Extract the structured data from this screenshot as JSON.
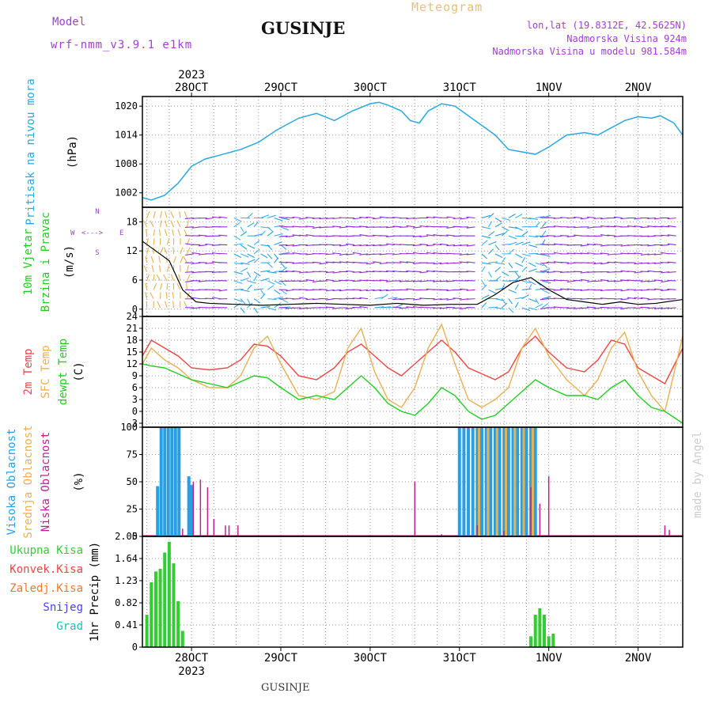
{
  "header": {
    "model_label": "Model",
    "model_name": "wrf-nmm_v3.9.1  e1km",
    "title": "GUSINJE",
    "meteogram": "Meteogram",
    "lonlat": "lon,lat (19.8312E, 42.5625N)",
    "altitude": "Nadmorska Visina 924m",
    "model_altitude": "Nadmorska Visina u modelu 981.584m",
    "watermark": "made by Angel",
    "footer": "GUSINJE"
  },
  "colors": {
    "pressure": "#29a8e0",
    "temp2m": "#ee4444",
    "sfc": "#e8b050",
    "dewpt": "#22cc22",
    "cloud_high": "#2a9fdf",
    "cloud_mid": "#e8b050",
    "cloud_low": "#c0208f",
    "precip": "#33cc33",
    "title_purple": "#a040d0"
  },
  "time_axis": {
    "year": "2023",
    "ticks": [
      {
        "label": "28OCT",
        "day": 1
      },
      {
        "label": "29OCT",
        "day": 2
      },
      {
        "label": "30OCT",
        "day": 3
      },
      {
        "label": "31OCT",
        "day": 4
      },
      {
        "label": "1NOV",
        "day": 5
      },
      {
        "label": "2NOV",
        "day": 6
      }
    ],
    "range": [
      0.45,
      6.5
    ]
  },
  "chart_data": [
    {
      "type": "line",
      "ylabel_lines": [
        "Pritisak na nivou mora",
        "(hPa)"
      ],
      "ylim": [
        999,
        1022
      ],
      "yticks": [
        1002,
        1008,
        1014,
        1020
      ],
      "series": [
        {
          "x": [
            0.45,
            0.55,
            0.7,
            0.85,
            1.0,
            1.15,
            1.35,
            1.55,
            1.75,
            1.95,
            2.2,
            2.4,
            2.6,
            2.8,
            3.0,
            3.1,
            3.2,
            3.35,
            3.45,
            3.55,
            3.65,
            3.8,
            3.95,
            4.1,
            4.25,
            4.4,
            4.55,
            4.7,
            4.85,
            5.0,
            5.2,
            5.4,
            5.55,
            5.7,
            5.85,
            6.0,
            6.15,
            6.25,
            6.4,
            6.5
          ],
          "y": [
            1001,
            1000.5,
            1001.5,
            1004,
            1007.5,
            1009,
            1010,
            1011,
            1012.5,
            1015,
            1017.5,
            1018.5,
            1017,
            1019,
            1020.5,
            1020.8,
            1020.2,
            1019,
            1017,
            1016.5,
            1019,
            1020.5,
            1020,
            1018,
            1016,
            1014,
            1011,
            1010.5,
            1010,
            1011.5,
            1014,
            1014.5,
            1014,
            1015.5,
            1017,
            1017.8,
            1017.5,
            1018,
            1016.5,
            1014
          ]
        }
      ]
    },
    {
      "type": "line",
      "ylabel_lines": [
        "10m Vjetar",
        "Brzina i Pravac",
        "(m/s)"
      ],
      "ylim": [
        -1.5,
        21
      ],
      "yticks": [
        0,
        6,
        12,
        18
      ],
      "compass": [
        "N",
        "W",
        "<",
        "-",
        "-",
        "-",
        ">",
        "E",
        "S"
      ],
      "series": [
        {
          "name": "speed",
          "x": [
            0.45,
            0.6,
            0.75,
            0.9,
            1.05,
            1.2,
            1.5,
            1.8,
            2.1,
            2.4,
            2.7,
            3.0,
            3.3,
            3.6,
            3.9,
            4.2,
            4.4,
            4.6,
            4.8,
            5.0,
            5.2,
            5.4,
            5.6,
            5.8,
            6.0,
            6.2,
            6.5
          ],
          "y": [
            14,
            12,
            10,
            4,
            1.5,
            1.2,
            1.0,
            0.8,
            1.0,
            1.2,
            1.0,
            0.8,
            1.2,
            0.8,
            1.0,
            1.0,
            3.0,
            5.5,
            6.5,
            4.0,
            2.0,
            1.5,
            1.0,
            1.5,
            1.0,
            1.2,
            2.0
          ]
        }
      ]
    },
    {
      "type": "line",
      "ylabel_lines": [
        "2m Temp",
        "SFC Temp",
        "dewpt Temp",
        "(C)"
      ],
      "ylim": [
        -4,
        24
      ],
      "yticks": [
        -3,
        0,
        3,
        6,
        9,
        12,
        15,
        18,
        21,
        24
      ],
      "series": [
        {
          "name": "2m Temp",
          "x": [
            0.45,
            0.55,
            0.7,
            0.85,
            1.0,
            1.2,
            1.4,
            1.55,
            1.7,
            1.85,
            2.0,
            2.2,
            2.4,
            2.6,
            2.75,
            2.9,
            3.05,
            3.2,
            3.35,
            3.5,
            3.65,
            3.8,
            3.95,
            4.1,
            4.25,
            4.4,
            4.55,
            4.7,
            4.85,
            5.0,
            5.2,
            5.4,
            5.55,
            5.7,
            5.85,
            6.0,
            6.15,
            6.3,
            6.5
          ],
          "y": [
            14,
            18,
            16,
            14,
            11,
            10.5,
            11,
            13,
            17,
            16.5,
            14,
            9,
            8,
            11,
            15,
            17,
            14,
            11,
            9,
            12,
            15,
            18,
            15,
            11,
            9.5,
            8,
            10,
            16,
            19,
            15,
            11,
            10,
            13,
            18,
            17,
            11,
            9,
            7,
            16
          ]
        },
        {
          "name": "SFC Temp",
          "x": [
            0.45,
            0.55,
            0.7,
            0.85,
            1.0,
            1.2,
            1.4,
            1.55,
            1.7,
            1.85,
            2.0,
            2.2,
            2.4,
            2.6,
            2.75,
            2.9,
            3.05,
            3.2,
            3.35,
            3.5,
            3.65,
            3.8,
            3.95,
            4.1,
            4.25,
            4.4,
            4.55,
            4.7,
            4.85,
            5.0,
            5.2,
            5.4,
            5.55,
            5.7,
            5.85,
            6.0,
            6.15,
            6.3,
            6.5
          ],
          "y": [
            12,
            16,
            13,
            11,
            8,
            6,
            6,
            9,
            16,
            19,
            12,
            4,
            3,
            5,
            16,
            21,
            10,
            3,
            1,
            6,
            16,
            22,
            12,
            3,
            1,
            3,
            6,
            16,
            21,
            14,
            8,
            4,
            8,
            16,
            20,
            10,
            4,
            0,
            19
          ]
        },
        {
          "name": "dewpt Temp",
          "x": [
            0.45,
            0.55,
            0.7,
            0.85,
            1.0,
            1.2,
            1.4,
            1.55,
            1.7,
            1.85,
            2.0,
            2.2,
            2.4,
            2.6,
            2.75,
            2.9,
            3.05,
            3.2,
            3.35,
            3.5,
            3.65,
            3.8,
            3.95,
            4.1,
            4.25,
            4.4,
            4.55,
            4.7,
            4.85,
            5.0,
            5.2,
            5.4,
            5.55,
            5.7,
            5.85,
            6.0,
            6.15,
            6.3,
            6.5
          ],
          "y": [
            12,
            11.5,
            11,
            9.5,
            8,
            7,
            6,
            7.5,
            9,
            8.5,
            6,
            3,
            4,
            3,
            6,
            9,
            6,
            2,
            0,
            -1,
            2,
            6,
            4,
            0,
            -2,
            -1,
            2,
            5,
            8,
            6,
            4,
            4,
            3,
            6,
            8,
            4,
            1,
            0,
            -3
          ]
        }
      ]
    },
    {
      "type": "bar",
      "ylabel_lines": [
        "Visoka Oblacnost",
        "Srednja Oblacnost",
        "Niska Oblacnost",
        "(%)"
      ],
      "ylim": [
        0,
        100
      ],
      "yticks": [
        0,
        25,
        50,
        75,
        100
      ],
      "series": [
        {
          "name": "Visoka Oblacnost",
          "x": [
            0.62,
            0.66,
            0.7,
            0.74,
            0.78,
            0.82,
            0.86,
            0.97,
            1.0,
            4.0,
            4.05,
            4.1,
            4.15,
            4.2,
            4.25,
            4.3,
            4.35,
            4.4,
            4.45,
            4.5,
            4.55,
            4.6,
            4.65,
            4.7,
            4.75,
            4.8,
            4.85
          ],
          "y": [
            46,
            100,
            100,
            100,
            100,
            100,
            100,
            55,
            47,
            100,
            100,
            100,
            100,
            100,
            100,
            100,
            100,
            100,
            100,
            100,
            100,
            100,
            100,
            100,
            100,
            100,
            100
          ]
        },
        {
          "name": "Srednja Oblacnost",
          "x": [
            4.22,
            4.32,
            4.42,
            4.52,
            4.62,
            4.72,
            4.82
          ],
          "y": [
            100,
            100,
            100,
            100,
            100,
            100,
            100
          ]
        },
        {
          "name": "Niska Oblacnost",
          "x": [
            0.9,
            1.02,
            1.1,
            1.18,
            1.25,
            1.38,
            1.42,
            1.52,
            3.5,
            3.8,
            4.2,
            4.5,
            4.8,
            4.9,
            5.0,
            6.3,
            6.35
          ],
          "y": [
            7,
            50,
            52,
            45,
            16,
            10,
            10,
            10,
            50,
            2,
            10,
            5,
            45,
            30,
            55,
            10,
            6
          ]
        }
      ]
    },
    {
      "type": "bar",
      "ylabel_lines": [
        "1hr Precip (mm)"
      ],
      "ylim": [
        0,
        2.05
      ],
      "yticks": [
        0,
        0.41,
        0.82,
        1.23,
        1.64,
        2.05
      ],
      "ytick_labels": [
        "0",
        "0.41",
        "0.82",
        "1.23",
        "1.64",
        "2.05"
      ],
      "legend": [
        "Ukupna Kisa",
        "Konvek.Kisa",
        "Zaledj.Kisa",
        "Snijeg",
        "Grad"
      ],
      "series": [
        {
          "name": "Ukupna Kisa",
          "x": [
            0.5,
            0.55,
            0.6,
            0.65,
            0.7,
            0.75,
            0.8,
            0.85,
            0.9,
            4.8,
            4.85,
            4.9,
            4.95,
            5.0,
            5.05
          ],
          "y": [
            0.6,
            1.2,
            1.4,
            1.45,
            1.75,
            1.95,
            1.55,
            0.85,
            0.3,
            0.2,
            0.6,
            0.72,
            0.6,
            0.2,
            0.25
          ]
        }
      ]
    }
  ]
}
